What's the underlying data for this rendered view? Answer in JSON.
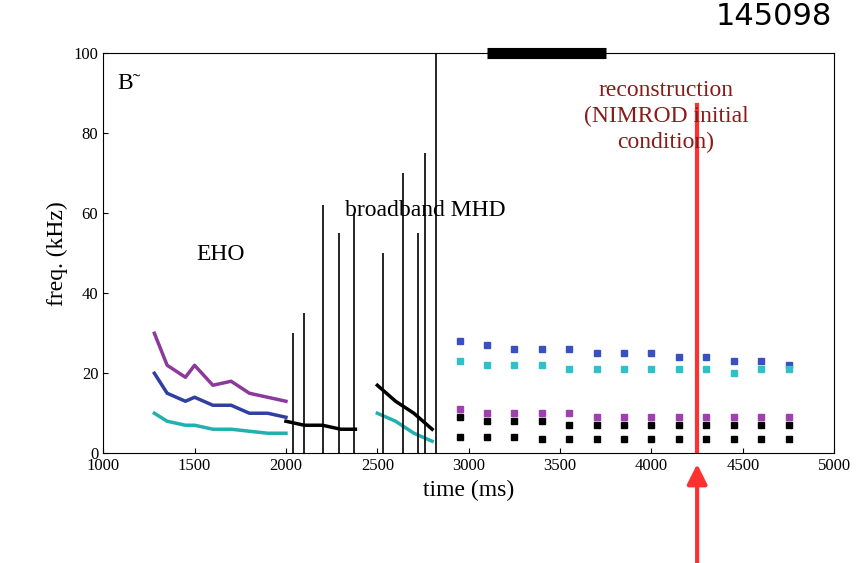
{
  "chart_data": {
    "type": "spectrogram",
    "title": "145098",
    "x_label": "time (ms)",
    "y_label": "freq. (kHz)",
    "xlim": [
      1000,
      5000
    ],
    "ylim": [
      0,
      100
    ],
    "xticks": [
      1000,
      1500,
      2000,
      2500,
      3000,
      3500,
      4000,
      4500,
      5000
    ],
    "yticks": [
      0,
      20,
      40,
      60,
      80,
      100
    ],
    "grid": false,
    "panel_label": "B̃",
    "annotations": [
      {
        "text": "EHO"
      },
      {
        "text": "broadband MHD"
      },
      {
        "text": "reconstruction\n(NIMROD initial\ncondition)",
        "color": "#8b1a1a"
      }
    ],
    "reconstruction_time": 4250,
    "reconstruction_color": "#ff3030",
    "highlight_interval": [
      3100,
      3750
    ],
    "series": [
      {
        "type": "line",
        "color": "#8b3a9b",
        "x": [
          1280,
          1350,
          1450,
          1500,
          1600,
          1700,
          1800,
          1900,
          2000
        ],
        "values": [
          30,
          22,
          19,
          22,
          17,
          18,
          15,
          14,
          13
        ]
      },
      {
        "type": "line",
        "color": "#3040a0",
        "x": [
          1280,
          1350,
          1450,
          1500,
          1600,
          1700,
          1800,
          1900,
          2000
        ],
        "values": [
          20,
          15,
          13,
          14,
          12,
          12,
          10,
          10,
          9
        ]
      },
      {
        "type": "line",
        "color": "#20b0b0",
        "x": [
          1280,
          1350,
          1450,
          1500,
          1600,
          1700,
          1800,
          1900,
          2000
        ],
        "values": [
          10,
          8,
          7,
          7,
          6,
          6,
          5.5,
          5,
          5
        ]
      },
      {
        "type": "line",
        "color": "#000000",
        "x": [
          2000,
          2100,
          2200,
          2300,
          2380
        ],
        "values": [
          8,
          7,
          7,
          6,
          6
        ]
      },
      {
        "type": "line",
        "color": "#000000",
        "x": [
          2500,
          2600,
          2700,
          2800
        ],
        "values": [
          17,
          13,
          10,
          6
        ]
      },
      {
        "type": "line",
        "color": "#20b0b0",
        "x": [
          2500,
          2600,
          2700,
          2800
        ],
        "values": [
          10,
          8,
          5,
          3
        ]
      },
      {
        "type": "vlines",
        "color": "#000000",
        "x": [
          2040,
          2100,
          2200,
          2290,
          2370,
          2530,
          2640,
          2720,
          2760,
          2820
        ],
        "values": [
          30,
          35,
          62,
          55,
          60,
          50,
          70,
          55,
          75,
          100
        ]
      },
      {
        "type": "scatter",
        "color": "#3a4fc0",
        "marker": "s",
        "x": [
          2950,
          3100,
          3250,
          3400,
          3550,
          3700,
          3850,
          4000,
          4150,
          4300,
          4450,
          4600,
          4750
        ],
        "values": [
          28,
          27,
          26,
          26,
          26,
          25,
          25,
          25,
          24,
          24,
          23,
          23,
          22
        ]
      },
      {
        "type": "scatter",
        "color": "#30c0c8",
        "marker": "s",
        "x": [
          2950,
          3100,
          3250,
          3400,
          3550,
          3700,
          3850,
          4000,
          4150,
          4300,
          4450,
          4600,
          4750
        ],
        "values": [
          23,
          22,
          22,
          22,
          21,
          21,
          21,
          21,
          21,
          21,
          20,
          21,
          21
        ]
      },
      {
        "type": "scatter",
        "color": "#a040b0",
        "marker": "s",
        "x": [
          2950,
          3100,
          3250,
          3400,
          3550,
          3700,
          3850,
          4000,
          4150,
          4300,
          4450,
          4600,
          4750
        ],
        "values": [
          11,
          10,
          10,
          10,
          10,
          9,
          9,
          9,
          9,
          9,
          9,
          9,
          9
        ]
      },
      {
        "type": "scatter",
        "color": "#000000",
        "marker": "s",
        "x": [
          2950,
          3100,
          3250,
          3400,
          3550,
          3700,
          3850,
          4000,
          4150,
          4300,
          4450,
          4600,
          4750
        ],
        "values": [
          9,
          8,
          8,
          8,
          7,
          7,
          7,
          7,
          7,
          7,
          7,
          7,
          7
        ]
      },
      {
        "type": "scatter",
        "color": "#000000",
        "marker": "s",
        "x": [
          2950,
          3100,
          3250,
          3400,
          3550,
          3700,
          3850,
          4000,
          4150,
          4300,
          4450,
          4600,
          4750
        ],
        "values": [
          4,
          4,
          4,
          3.5,
          3.5,
          3.5,
          3.5,
          3.5,
          3.5,
          3.5,
          3.5,
          3.5,
          3.5
        ]
      }
    ]
  }
}
